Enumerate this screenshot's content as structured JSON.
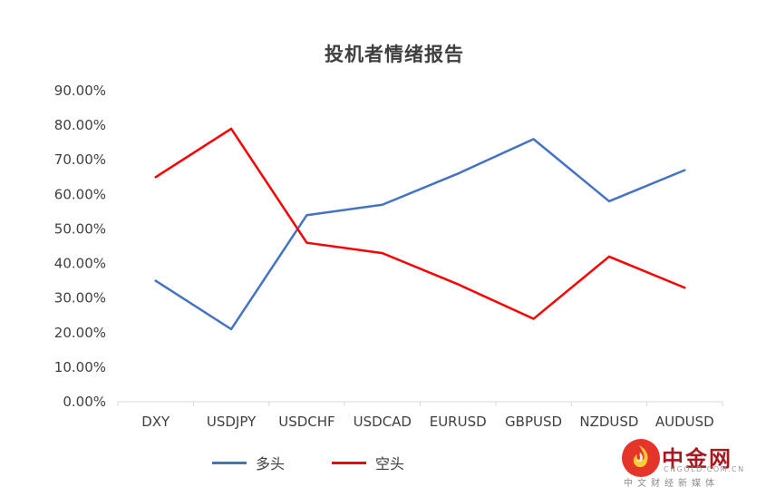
{
  "chart_data": {
    "type": "line",
    "title": "投机者情绪报告",
    "categories": [
      "DXY",
      "USDJPY",
      "USDCHF",
      "USDCAD",
      "EURUSD",
      "GBPUSD",
      "NZDUSD",
      "AUDUSD"
    ],
    "series": [
      {
        "name": "多头",
        "color": "#4472c4",
        "values": [
          35,
          21,
          54,
          57,
          66,
          76,
          58,
          67
        ]
      },
      {
        "name": "空头",
        "color": "#fe0000",
        "values": [
          65,
          79,
          46,
          43,
          34,
          24,
          42,
          33
        ]
      }
    ],
    "ylim": [
      0,
      90
    ],
    "ytick_step": 10,
    "y_tick_labels": [
      "0.00%",
      "10.00%",
      "20.00%",
      "30.00%",
      "40.00%",
      "50.00%",
      "60.00%",
      "70.00%",
      "80.00%",
      "90.00%"
    ],
    "grid": false,
    "legend_position": "bottom",
    "axis_color": "#d9d9d9",
    "tick_label_color": "#404040"
  },
  "watermark": {
    "brand": "中金网",
    "domain": "CNGOLD.COM.CN",
    "tagline": "中文财经新媒体",
    "logo_color": "#e5352b",
    "flame_color": "#ffcc33"
  }
}
